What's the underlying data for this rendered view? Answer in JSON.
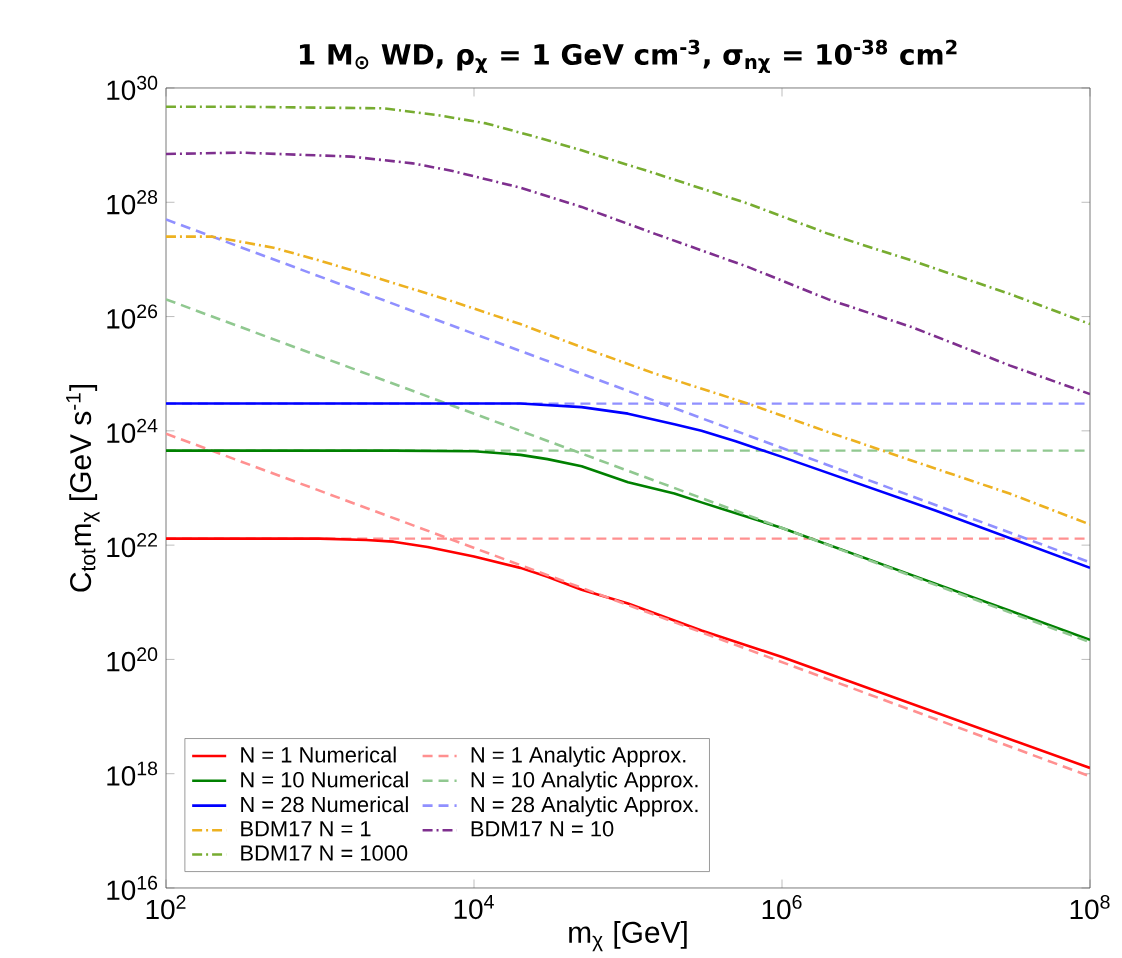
{
  "chart_data": {
    "type": "line",
    "title": "1 M$_{⊙}$ WD, ρ$_{χ}$ = 1 GeV cm$^{-3}$, σ$_{nχ}$ = 10$^{-38}$ cm$^{2}$",
    "xlabel": "m$_{χ}$ [GeV]",
    "ylabel": "C$_{tot}$m$_{χ}$ [GeV s$^{-1}$]",
    "log": "xy",
    "xlim": [
      100,
      100000000
    ],
    "ylim": [
      1e+16,
      1e+30
    ],
    "xticks": [
      {
        "value": 100,
        "label": "10$^{2}$"
      },
      {
        "value": 10000,
        "label": "10$^{4}$"
      },
      {
        "value": 1000000,
        "label": "10$^{6}$"
      },
      {
        "value": 100000000,
        "label": "10$^{8}$"
      }
    ],
    "yticks": [
      {
        "value": 1e+16,
        "label": "10$^{16}$"
      },
      {
        "value": 1e+18,
        "label": "10$^{18}$"
      },
      {
        "value": 1e+20,
        "label": "10$^{20}$"
      },
      {
        "value": 1e+22,
        "label": "10$^{22}$"
      },
      {
        "value": 1e+24,
        "label": "10$^{24}$"
      },
      {
        "value": 1e+26,
        "label": "10$^{26}$"
      },
      {
        "value": 1e+28,
        "label": "10$^{28}$"
      },
      {
        "value": 1e+30,
        "label": "10$^{30}$"
      }
    ],
    "legend": "bottom left",
    "marker": "none",
    "ref_lines": [
      {
        "axis": "y",
        "value": 1.3e+22,
        "color": "#ff9090",
        "line_style": "dashed"
      },
      {
        "axis": "y",
        "value": 4.5e+23,
        "color": "#90c890",
        "line_style": "dashed"
      },
      {
        "axis": "y",
        "value": 3e+24,
        "color": "#9090ff",
        "line_style": "dashed"
      }
    ],
    "series": [
      {
        "name": "N = 1 Numerical",
        "color": "#ff0000",
        "line_style": "solid",
        "x": [
          100,
          1000,
          2000,
          3000,
          5000,
          10000,
          20000,
          30000,
          50000,
          100000,
          300000,
          1000000,
          100000000
        ],
        "values": [
          1.3e+22,
          1.3e+22,
          1.23e+22,
          1.15e+22,
          9.3e+21,
          6.3e+21,
          4e+21,
          2.8e+21,
          1.66e+21,
          9.5e+20,
          3.2e+20,
          1.1e+20,
          1.26e+18
        ]
      },
      {
        "name": "N = 1 Analytic Approx.",
        "color": "#ff9090",
        "line_style": "dashed",
        "x": [
          100,
          100000000
        ],
        "values": [
          8.9e+23,
          9e+17
        ]
      },
      {
        "name": "N = 10 Numerical",
        "color": "#008000",
        "line_style": "solid",
        "x": [
          100,
          3000,
          10000,
          20000,
          30000,
          50000,
          100000,
          200000,
          300000,
          1000000,
          10000000,
          100000000
        ],
        "values": [
          4.5e+23,
          4.5e+23,
          4.4e+23,
          3.8e+23,
          3.2e+23,
          2.4e+23,
          1.26e+23,
          8e+22,
          5.6e+22,
          2e+22,
          2.1e+21,
          2.2e+20
        ]
      },
      {
        "name": "N = 10 Analytic Approx.",
        "color": "#90c890",
        "line_style": "dashed",
        "x": [
          100,
          100000000
        ],
        "values": [
          2e+26,
          2e+20
        ]
      },
      {
        "name": "N = 28 Numerical",
        "color": "#0000ff",
        "line_style": "solid",
        "x": [
          100,
          20000,
          50000,
          100000,
          200000,
          300000,
          500000,
          1000000,
          10000000,
          100000000
        ],
        "values": [
          3e+24,
          3e+24,
          2.6e+24,
          2e+24,
          1.3e+24,
          1e+24,
          6.6e+23,
          3.5e+23,
          4e+22,
          4e+21
        ]
      },
      {
        "name": "N = 28 Analytic Approx.",
        "color": "#9090ff",
        "line_style": "dashed",
        "x": [
          100,
          100000000
        ],
        "values": [
          5e+27,
          5e+21
        ]
      },
      {
        "name": "BDM17 N = 1",
        "color": "#edb120",
        "line_style": "dashdot",
        "x": [
          100,
          200,
          500,
          1000,
          2500,
          7000,
          20000,
          50000,
          150000,
          600000,
          2000000,
          7000000,
          30000000,
          100000000
        ],
        "values": [
          2.5e+27,
          2.5e+27,
          1.6e+27,
          9.5e+26,
          4.5e+26,
          1.9e+26,
          7.4e+25,
          2.9e+25,
          1e+25,
          3e+24,
          9.5e+23,
          3e+23,
          8e+22,
          2.3e+22
        ]
      },
      {
        "name": "BDM17 N = 10",
        "color": "#7e2f8e",
        "line_style": "dashdot",
        "x": [
          100,
          300,
          1600,
          4000,
          7000,
          20000,
          50000,
          150000,
          600000,
          2000000,
          7000000,
          30000000,
          100000000
        ],
        "values": [
          7e+28,
          7.4e+28,
          6.3e+28,
          4.8e+28,
          3.6e+28,
          1.8e+28,
          8.3e+27,
          2.8e+27,
          7.4e+26,
          2e+26,
          6.5e+25,
          1.4e+25,
          4.4e+24
        ]
      },
      {
        "name": "BDM17 N = 1000",
        "color": "#77ac30",
        "line_style": "dashdot",
        "x": [
          100,
          300,
          2600,
          6000,
          12000,
          25000,
          50000,
          150000,
          600000,
          2000000,
          7000000,
          30000000,
          100000000
        ],
        "values": [
          4.7e+29,
          4.7e+29,
          4.4e+29,
          3.3e+29,
          2.4e+29,
          1.4e+29,
          8.1e+28,
          3.2e+28,
          9.5e+27,
          2.8e+27,
          9.5e+26,
          2.5e+26,
          7.4e+25
        ]
      }
    ]
  }
}
